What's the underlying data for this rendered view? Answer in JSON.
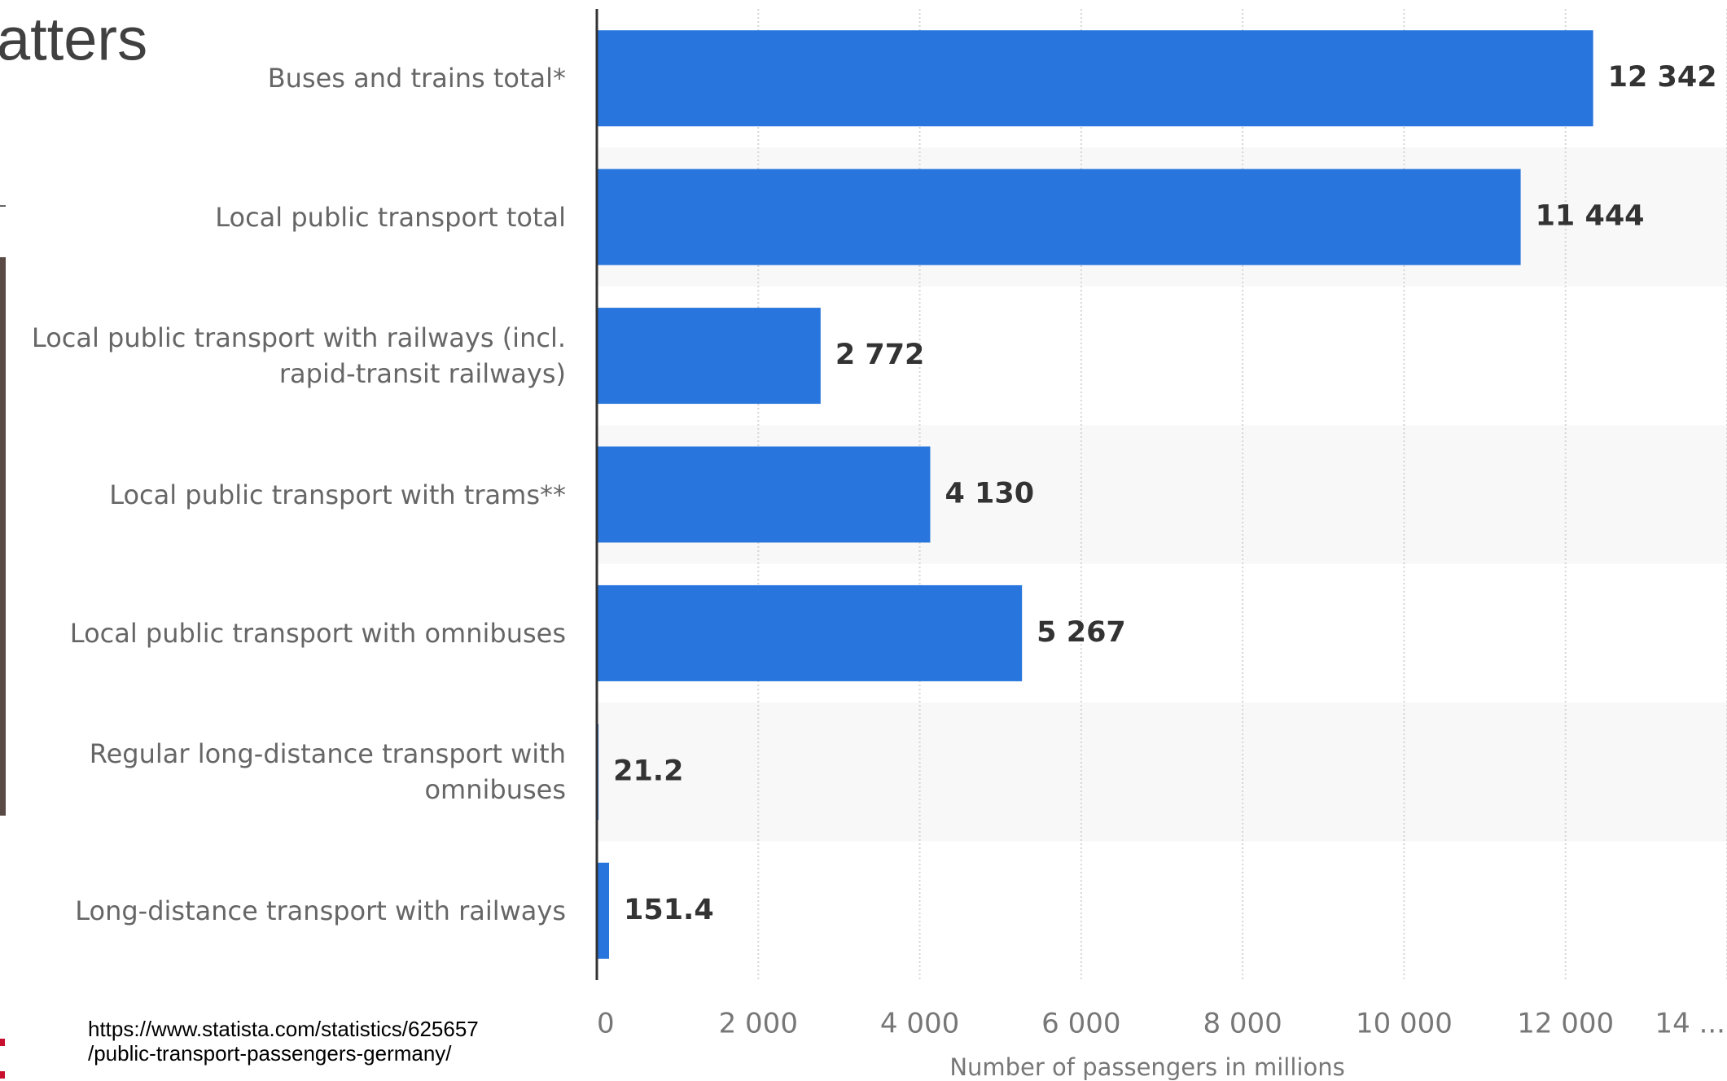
{
  "slide_title": "atters",
  "source_url": [
    "https://www.statista.com/statistics/625657",
    "/public-transport-passengers-germany/"
  ],
  "chart_data": {
    "type": "bar",
    "orientation": "horizontal",
    "categories": [
      "Buses and trains total*",
      "Local public transport total",
      "Local public transport with railways (incl. rapid-transit railways)",
      "Local public transport with trams**",
      "Local public transport with omnibuses",
      "Regular long-distance transport with omnibuses",
      "Long-distance transport with railways"
    ],
    "values": [
      12342,
      11444,
      2772,
      4130,
      5267,
      21.2,
      151.4
    ],
    "value_labels": [
      "12 342",
      "11 444",
      "2 772",
      "4 130",
      "5 267",
      "21.2",
      "151.4"
    ],
    "color": "#2876dd",
    "x_label": "Number of passengers in millions",
    "xlim": [
      0,
      14000
    ],
    "xticks": [
      0,
      {
        "value": 2000,
        "label": "2 000"
      },
      {
        "value": 4000,
        "label": "4 000"
      },
      {
        "value": 6000,
        "label": "6 000"
      },
      {
        "value": 8000,
        "label": "8 000"
      },
      {
        "value": 10000,
        "label": "10 000"
      },
      {
        "value": 12000,
        "label": "12 000"
      },
      {
        "value": 14000,
        "label": "14 ..."
      }
    ],
    "grid": true
  }
}
